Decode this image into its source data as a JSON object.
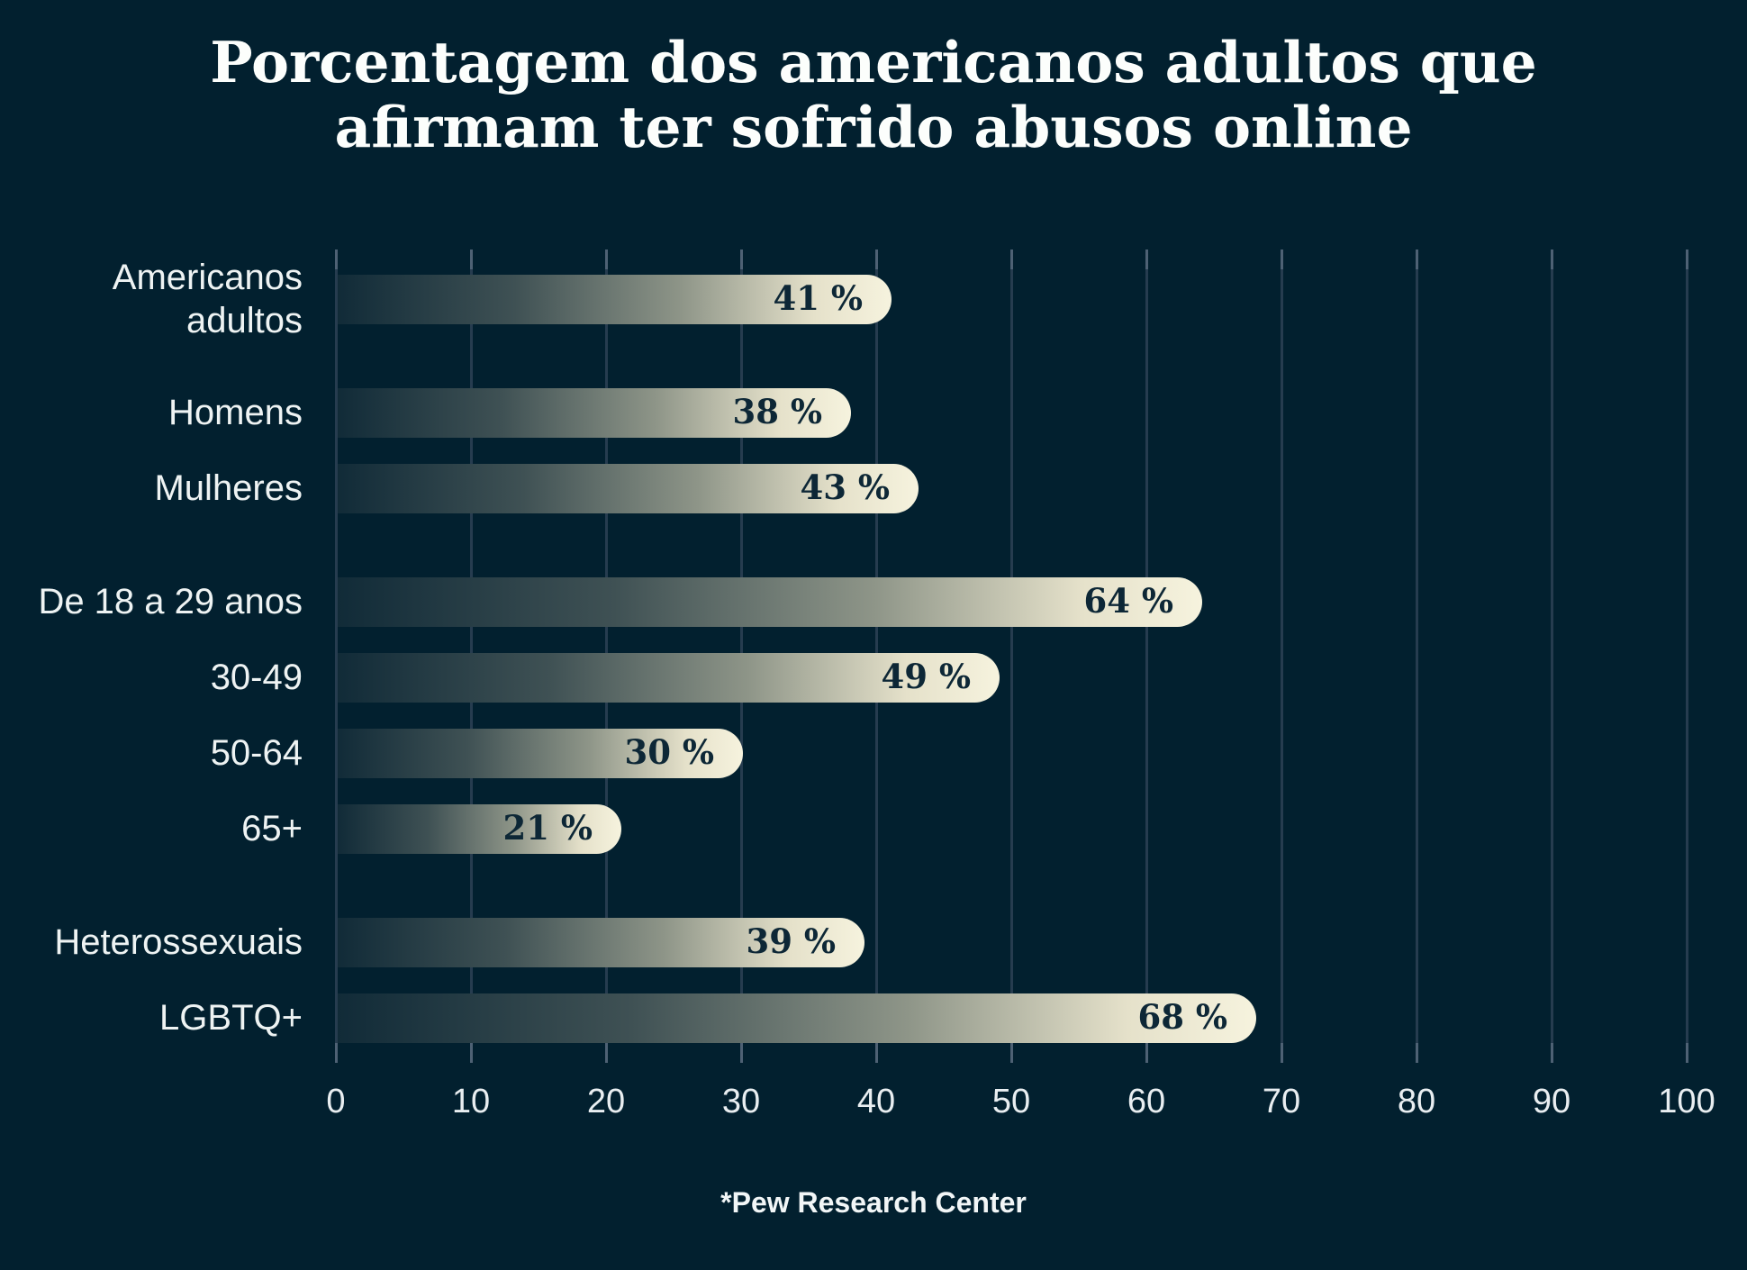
{
  "title": "Porcentagem dos americanos adultos que afirmam ter sofrido abusos online",
  "source": "*Pew Research Center",
  "chart_data": {
    "type": "bar",
    "orientation": "horizontal",
    "title": "Porcentagem dos americanos adultos que afirmam ter sofrido abusos online",
    "xlabel": "",
    "ylabel": "",
    "xlim": [
      0,
      100
    ],
    "x_ticks": [
      0,
      10,
      20,
      30,
      40,
      50,
      60,
      70,
      80,
      90,
      100
    ],
    "grid": "vertical",
    "value_suffix": " %",
    "source_note": "*Pew Research Center",
    "groups": [
      {
        "rows": [
          {
            "label": "Americanos adultos",
            "value": 41
          }
        ]
      },
      {
        "rows": [
          {
            "label": "Homens",
            "value": 38
          },
          {
            "label": "Mulheres",
            "value": 43
          }
        ]
      },
      {
        "rows": [
          {
            "label": "De 18 a 29 anos",
            "value": 64
          },
          {
            "label": "30-49",
            "value": 49
          },
          {
            "label": "50-64",
            "value": 30
          },
          {
            "label": "65+",
            "value": 21
          }
        ]
      },
      {
        "rows": [
          {
            "label": "Heterossexuais",
            "value": 39
          },
          {
            "label": "LGBTQ+",
            "value": 68
          }
        ]
      }
    ],
    "colors": {
      "background": "#02202f",
      "bar_gradient_start": "#112b38",
      "bar_gradient_mid": "#8e9588",
      "bar_gradient_end": "#f6f3de",
      "value_text": "#0d2736",
      "label_text": "#eef3f3",
      "tick_label_text": "#e9eef1",
      "gridline": "#263c4f",
      "tick_mark": "#4e6174",
      "title_text": "#fcfefc"
    }
  }
}
